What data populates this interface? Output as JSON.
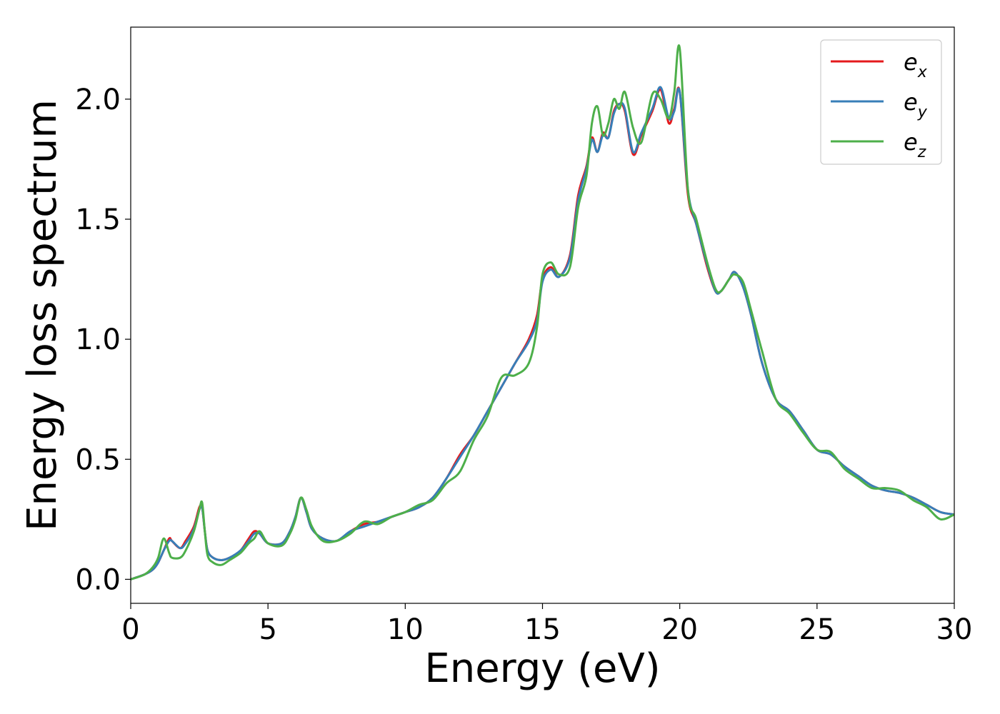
{
  "chart_data": {
    "type": "line",
    "title": "",
    "xlabel": "Energy (eV)",
    "ylabel": "Energy loss spectrum",
    "xlim": [
      0,
      30
    ],
    "ylim": [
      -0.1,
      2.3
    ],
    "xticks": [
      0,
      5,
      10,
      15,
      20,
      25,
      30
    ],
    "xtick_labels": [
      "0",
      "5",
      "10",
      "15",
      "20",
      "25",
      "30"
    ],
    "yticks": [
      0.0,
      0.5,
      1.0,
      1.5,
      2.0
    ],
    "ytick_labels": [
      "0.0",
      "0.5",
      "1.0",
      "1.5",
      "2.0"
    ],
    "grid": false,
    "legend_position": "top-right",
    "series": [
      {
        "name": "e_x",
        "label_base": "e",
        "label_sub": "x",
        "color": "#e41a1c",
        "x": [
          0,
          0.5,
          0.8,
          1.0,
          1.2,
          1.4,
          1.5,
          1.8,
          2.0,
          2.3,
          2.5,
          2.6,
          2.7,
          2.8,
          3.0,
          3.3,
          3.6,
          4.0,
          4.3,
          4.5,
          4.7,
          5.0,
          5.5,
          5.8,
          6.0,
          6.2,
          6.4,
          6.6,
          7.0,
          7.5,
          8.0,
          8.5,
          9.0,
          9.5,
          10.0,
          10.5,
          11.0,
          11.5,
          12.0,
          12.5,
          13.0,
          13.5,
          14.0,
          14.5,
          14.8,
          15.0,
          15.3,
          15.6,
          16.0,
          16.3,
          16.6,
          16.8,
          17.0,
          17.2,
          17.4,
          17.6,
          17.8,
          18.0,
          18.3,
          18.6,
          19.0,
          19.3,
          19.6,
          19.8,
          20.0,
          20.3,
          20.6,
          21.0,
          21.3,
          21.5,
          21.8,
          22.0,
          22.3,
          22.6,
          23.0,
          23.5,
          24.0,
          24.5,
          25.0,
          25.5,
          26.0,
          26.5,
          27.0,
          27.5,
          28.0,
          28.5,
          29.0,
          29.5,
          30.0
        ],
        "y": [
          0.0,
          0.02,
          0.04,
          0.07,
          0.12,
          0.17,
          0.16,
          0.13,
          0.16,
          0.22,
          0.3,
          0.3,
          0.2,
          0.12,
          0.09,
          0.08,
          0.09,
          0.12,
          0.17,
          0.2,
          0.19,
          0.15,
          0.15,
          0.2,
          0.26,
          0.34,
          0.28,
          0.21,
          0.17,
          0.16,
          0.2,
          0.23,
          0.24,
          0.26,
          0.28,
          0.3,
          0.34,
          0.42,
          0.52,
          0.6,
          0.7,
          0.8,
          0.9,
          1.0,
          1.1,
          1.25,
          1.3,
          1.26,
          1.35,
          1.6,
          1.72,
          1.84,
          1.78,
          1.86,
          1.84,
          1.95,
          1.98,
          1.95,
          1.77,
          1.85,
          1.95,
          2.04,
          1.9,
          1.96,
          2.03,
          1.6,
          1.48,
          1.3,
          1.2,
          1.2,
          1.25,
          1.28,
          1.22,
          1.1,
          0.9,
          0.75,
          0.7,
          0.62,
          0.54,
          0.52,
          0.47,
          0.43,
          0.39,
          0.37,
          0.36,
          0.34,
          0.31,
          0.28,
          0.27
        ]
      },
      {
        "name": "e_y",
        "label_base": "e",
        "label_sub": "y",
        "color": "#377eb8",
        "x": [
          0,
          0.5,
          0.8,
          1.0,
          1.2,
          1.4,
          1.5,
          1.8,
          2.0,
          2.3,
          2.5,
          2.6,
          2.7,
          2.8,
          3.0,
          3.3,
          3.6,
          4.0,
          4.3,
          4.5,
          4.7,
          5.0,
          5.5,
          5.8,
          6.0,
          6.2,
          6.4,
          6.6,
          7.0,
          7.5,
          8.0,
          8.5,
          9.0,
          9.5,
          10.0,
          10.5,
          11.0,
          11.5,
          12.0,
          12.5,
          13.0,
          13.5,
          14.0,
          14.5,
          14.8,
          15.0,
          15.3,
          15.6,
          16.0,
          16.3,
          16.6,
          16.8,
          17.0,
          17.2,
          17.4,
          17.6,
          17.8,
          18.0,
          18.3,
          18.6,
          19.0,
          19.3,
          19.6,
          19.8,
          20.0,
          20.3,
          20.6,
          21.0,
          21.3,
          21.5,
          21.8,
          22.0,
          22.3,
          22.6,
          23.0,
          23.5,
          24.0,
          24.5,
          25.0,
          25.5,
          26.0,
          26.5,
          27.0,
          27.5,
          28.0,
          28.5,
          29.0,
          29.5,
          30.0
        ],
        "y": [
          0.0,
          0.02,
          0.04,
          0.07,
          0.12,
          0.16,
          0.16,
          0.13,
          0.15,
          0.21,
          0.29,
          0.3,
          0.2,
          0.12,
          0.09,
          0.08,
          0.09,
          0.12,
          0.16,
          0.19,
          0.19,
          0.15,
          0.15,
          0.2,
          0.26,
          0.34,
          0.28,
          0.21,
          0.17,
          0.16,
          0.2,
          0.22,
          0.24,
          0.26,
          0.28,
          0.3,
          0.34,
          0.42,
          0.51,
          0.6,
          0.7,
          0.8,
          0.9,
          0.99,
          1.08,
          1.24,
          1.29,
          1.26,
          1.34,
          1.58,
          1.71,
          1.83,
          1.78,
          1.85,
          1.84,
          1.94,
          1.98,
          1.96,
          1.78,
          1.86,
          1.96,
          2.05,
          1.92,
          1.95,
          2.03,
          1.62,
          1.48,
          1.31,
          1.2,
          1.2,
          1.25,
          1.28,
          1.22,
          1.1,
          0.9,
          0.75,
          0.7,
          0.62,
          0.54,
          0.52,
          0.47,
          0.43,
          0.39,
          0.37,
          0.36,
          0.34,
          0.31,
          0.28,
          0.27
        ]
      },
      {
        "name": "e_z",
        "label_base": "e",
        "label_sub": "z",
        "color": "#4daf4a",
        "x": [
          0,
          0.5,
          0.8,
          1.0,
          1.2,
          1.4,
          1.5,
          1.8,
          2.0,
          2.3,
          2.5,
          2.6,
          2.7,
          2.8,
          3.0,
          3.3,
          3.6,
          4.0,
          4.3,
          4.5,
          4.7,
          5.0,
          5.5,
          5.8,
          6.0,
          6.2,
          6.4,
          6.6,
          7.0,
          7.5,
          8.0,
          8.5,
          9.0,
          9.5,
          10.0,
          10.5,
          11.0,
          11.5,
          12.0,
          12.5,
          13.0,
          13.5,
          14.0,
          14.5,
          14.8,
          15.0,
          15.3,
          15.6,
          16.0,
          16.3,
          16.6,
          16.8,
          17.0,
          17.2,
          17.4,
          17.6,
          17.8,
          18.0,
          18.3,
          18.6,
          19.0,
          19.3,
          19.6,
          19.8,
          20.0,
          20.3,
          20.6,
          21.0,
          21.3,
          21.5,
          21.8,
          22.0,
          22.3,
          22.6,
          23.0,
          23.5,
          24.0,
          24.5,
          25.0,
          25.5,
          26.0,
          26.5,
          27.0,
          27.5,
          28.0,
          28.5,
          29.0,
          29.5,
          30.0
        ],
        "y": [
          0.0,
          0.02,
          0.05,
          0.09,
          0.17,
          0.11,
          0.09,
          0.09,
          0.12,
          0.2,
          0.29,
          0.32,
          0.2,
          0.1,
          0.07,
          0.06,
          0.08,
          0.11,
          0.15,
          0.17,
          0.2,
          0.15,
          0.14,
          0.19,
          0.25,
          0.34,
          0.29,
          0.22,
          0.16,
          0.16,
          0.19,
          0.24,
          0.23,
          0.26,
          0.28,
          0.31,
          0.33,
          0.4,
          0.45,
          0.58,
          0.68,
          0.84,
          0.85,
          0.9,
          1.05,
          1.27,
          1.32,
          1.27,
          1.3,
          1.55,
          1.68,
          1.9,
          1.97,
          1.85,
          1.9,
          2.0,
          1.96,
          2.03,
          1.88,
          1.82,
          2.02,
          2.0,
          1.92,
          2.03,
          2.21,
          1.62,
          1.5,
          1.32,
          1.21,
          1.2,
          1.25,
          1.27,
          1.24,
          1.12,
          0.95,
          0.75,
          0.69,
          0.61,
          0.54,
          0.53,
          0.46,
          0.42,
          0.38,
          0.38,
          0.37,
          0.33,
          0.3,
          0.25,
          0.27
        ]
      }
    ]
  }
}
